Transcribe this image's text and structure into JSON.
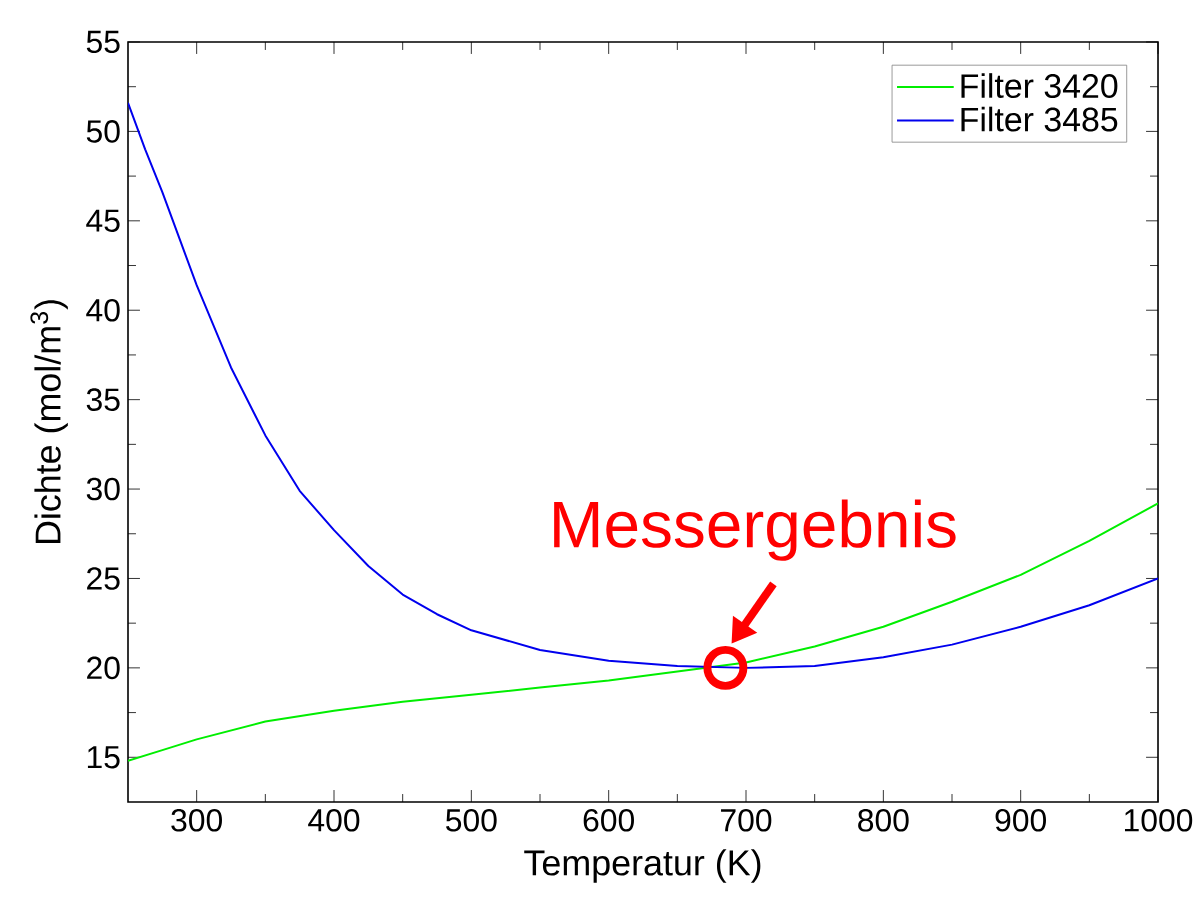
{
  "chart_data": {
    "type": "line",
    "xlabel": "Temperatur (K)",
    "ylabel": "Dichte (mol/m$^{3}$)",
    "series": [
      {
        "name": "Filter 3420",
        "color": "#00ee00",
        "x": [
          250,
          275,
          300,
          350,
          400,
          450,
          500,
          550,
          600,
          650,
          700,
          750,
          800,
          850,
          900,
          950,
          1000
        ],
        "values": [
          14.8,
          15.4,
          16.0,
          17.0,
          17.6,
          18.1,
          18.5,
          18.9,
          19.3,
          19.8,
          20.3,
          21.2,
          22.3,
          23.7,
          25.2,
          27.1,
          29.2
        ]
      },
      {
        "name": "Filter 3485",
        "color": "#0000ee",
        "x": [
          250,
          262.5,
          275,
          287.5,
          300,
          325,
          350,
          375,
          400,
          425,
          450,
          475,
          500,
          550,
          600,
          650,
          700,
          750,
          800,
          850,
          900,
          950,
          1000
        ],
        "values": [
          51.6,
          49.0,
          46.6,
          44.0,
          41.4,
          36.8,
          33.0,
          29.9,
          27.7,
          25.7,
          24.1,
          23.0,
          22.1,
          21.0,
          20.4,
          20.1,
          20.0,
          20.1,
          20.6,
          21.3,
          22.3,
          23.5,
          25.0
        ]
      }
    ],
    "xlim": [
      250,
      1000
    ],
    "ylim": [
      12.5,
      55
    ],
    "xticks": [
      300,
      400,
      500,
      600,
      700,
      800,
      900,
      1000
    ],
    "yticks": [
      15,
      20,
      25,
      30,
      35,
      40,
      45,
      50,
      55
    ],
    "annotations": [
      {
        "text": "Messergebnis",
        "x": 685,
        "y": 20
      }
    ],
    "grid": false,
    "legend": "top right",
    "marker": "none",
    "line_style": "solid"
  }
}
